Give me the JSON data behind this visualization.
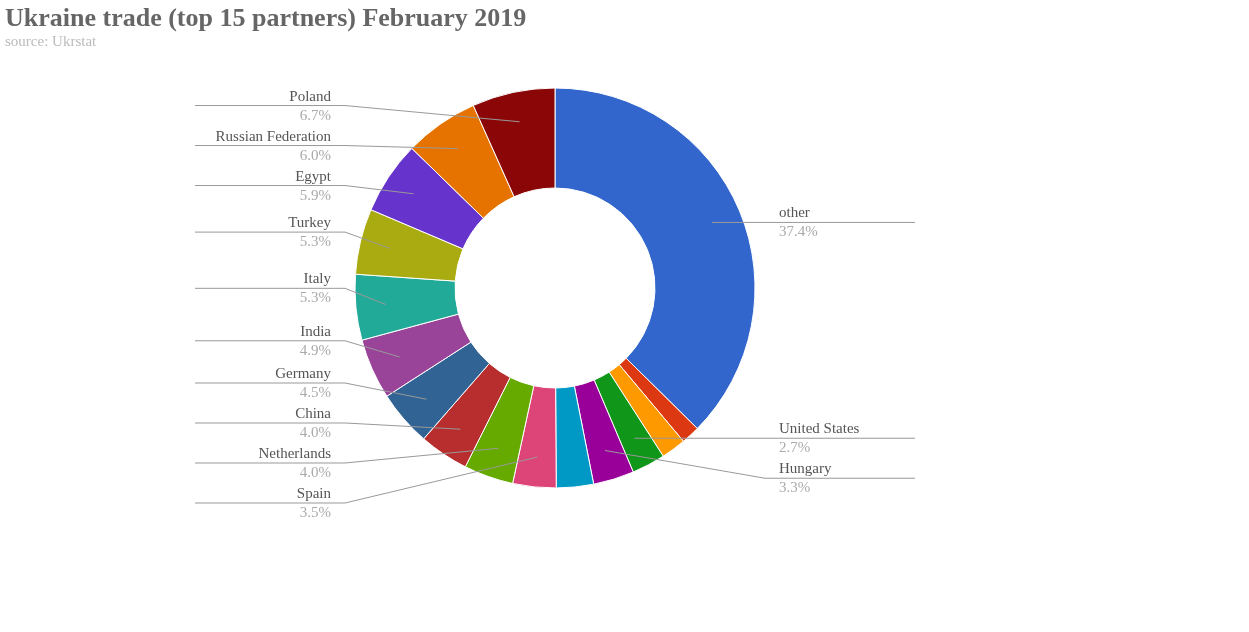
{
  "chart_data": {
    "type": "donut",
    "title": "Ukraine trade (top 15 partners) February 2019",
    "subtitle": "source: Ukrstat",
    "categories": [
      "other",
      null,
      null,
      "United States",
      "Hungary",
      null,
      "Spain",
      "Netherlands",
      "China",
      "Germany",
      "India",
      "Italy",
      "Turkey",
      "Egypt",
      "Russian Federation",
      "Poland"
    ],
    "values": [
      37.4,
      1.5,
      2.0,
      2.7,
      3.3,
      3.0,
      3.5,
      4.0,
      4.0,
      4.5,
      4.9,
      5.3,
      5.3,
      5.9,
      6.0,
      6.7
    ],
    "value_labels": [
      "37.4%",
      null,
      null,
      "2.7%",
      "3.3%",
      null,
      "3.5%",
      "4.0%",
      "4.0%",
      "4.5%",
      "4.9%",
      "5.3%",
      "5.3%",
      "5.9%",
      "6.0%",
      "6.7%"
    ],
    "colors": [
      "#3366cc",
      "#dc3912",
      "#ff9900",
      "#109618",
      "#990099",
      "#0099c6",
      "#dd4477",
      "#66aa00",
      "#b82e2e",
      "#316395",
      "#994499",
      "#22aa99",
      "#aaaa11",
      "#6633cc",
      "#e67300",
      "#8b0707"
    ],
    "legend": false
  }
}
